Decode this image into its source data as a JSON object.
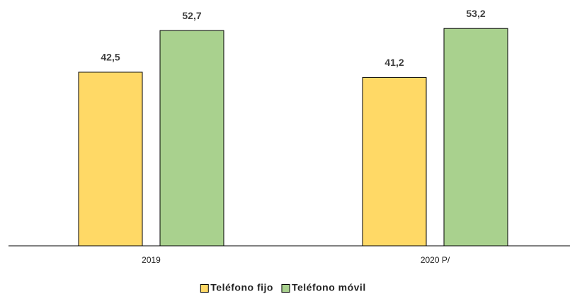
{
  "chart_data": {
    "type": "bar",
    "categories": [
      "2019",
      "2020 P/"
    ],
    "series": [
      {
        "name": "Teléfono fijo",
        "color": "#FFD966",
        "values": [
          42.5,
          41.2
        ],
        "value_labels": [
          "42,5",
          "41,2"
        ]
      },
      {
        "name": "Teléfono móvil",
        "color": "#A9D18E",
        "values": [
          52.7,
          53.2
        ],
        "value_labels": [
          "52,7",
          "53,2"
        ]
      }
    ],
    "ylim": [
      0,
      60
    ],
    "legend": "bottom"
  }
}
